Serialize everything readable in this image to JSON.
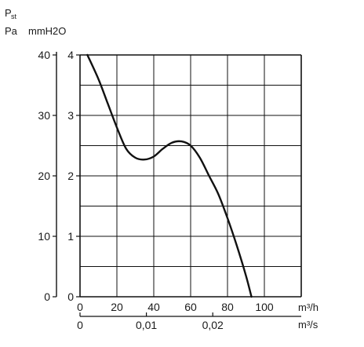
{
  "chart_data": {
    "type": "line",
    "ylabel_symbol": "P",
    "ylabel_subscript": "st",
    "ylabel_units_pa": "Pa",
    "ylabel_units_mmh2o": "mmH2O",
    "x_unit_flow_h": "m³/h",
    "x_unit_flow_s": "m³/s",
    "x_m3h_ticks": [
      "0",
      "20",
      "40",
      "60",
      "80",
      "100"
    ],
    "x_m3s_ticks": [
      "0",
      "0,01",
      "0,02"
    ],
    "x_m3s_tick_positions_m3h": [
      0,
      36,
      72
    ],
    "y_pa_ticks": [
      "0",
      "10",
      "20",
      "30",
      "40"
    ],
    "y_mmh2o_ticks": [
      "0",
      "1",
      "2",
      "3",
      "4"
    ],
    "xlim_m3h": [
      0,
      120
    ],
    "ylim_mmh2o": [
      0,
      4
    ],
    "grid": true,
    "series": [
      {
        "color": "#111111",
        "x": [
          4,
          10,
          15,
          20,
          25,
          30,
          35,
          40,
          45,
          50,
          55,
          60,
          65,
          70,
          75,
          80,
          85,
          90,
          93
        ],
        "y": [
          4.0,
          3.6,
          3.2,
          2.8,
          2.45,
          2.3,
          2.27,
          2.32,
          2.45,
          2.55,
          2.57,
          2.5,
          2.3,
          2.0,
          1.7,
          1.3,
          0.85,
          0.35,
          0.0
        ]
      }
    ]
  }
}
